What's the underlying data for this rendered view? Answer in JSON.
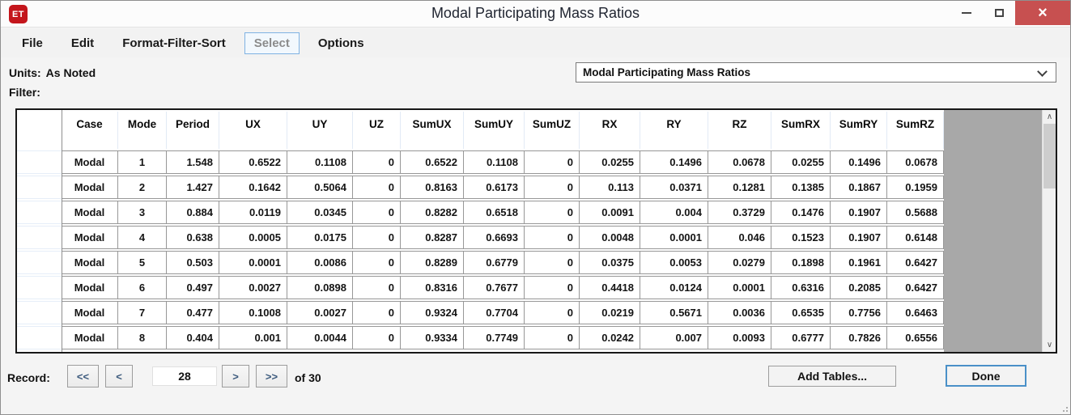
{
  "window": {
    "title": "Modal Participating Mass Ratios",
    "icon_text": "ET"
  },
  "icons": {
    "close": "×",
    "scroll_up": "∧",
    "scroll_down": "∨"
  },
  "menu": {
    "items": [
      {
        "label": "File",
        "disabled": false
      },
      {
        "label": "Edit",
        "disabled": false
      },
      {
        "label": "Format-Filter-Sort",
        "disabled": false
      },
      {
        "label": "Select",
        "disabled": true
      },
      {
        "label": "Options",
        "disabled": false
      }
    ]
  },
  "info": {
    "units_label": "Units:",
    "units_value": "As Noted",
    "filter_label": "Filter:"
  },
  "table_selector": {
    "value": "Modal Participating Mass Ratios"
  },
  "table": {
    "columns": [
      "Case",
      "Mode",
      "Period",
      "UX",
      "UY",
      "UZ",
      "SumUX",
      "SumUY",
      "SumUZ",
      "RX",
      "RY",
      "RZ",
      "SumRX",
      "SumRY",
      "SumRZ"
    ],
    "rows": [
      [
        "Modal",
        "1",
        "1.548",
        "0.6522",
        "0.1108",
        "0",
        "0.6522",
        "0.1108",
        "0",
        "0.0255",
        "0.1496",
        "0.0678",
        "0.0255",
        "0.1496",
        "0.0678"
      ],
      [
        "Modal",
        "2",
        "1.427",
        "0.1642",
        "0.5064",
        "0",
        "0.8163",
        "0.6173",
        "0",
        "0.113",
        "0.0371",
        "0.1281",
        "0.1385",
        "0.1867",
        "0.1959"
      ],
      [
        "Modal",
        "3",
        "0.884",
        "0.0119",
        "0.0345",
        "0",
        "0.8282",
        "0.6518",
        "0",
        "0.0091",
        "0.004",
        "0.3729",
        "0.1476",
        "0.1907",
        "0.5688"
      ],
      [
        "Modal",
        "4",
        "0.638",
        "0.0005",
        "0.0175",
        "0",
        "0.8287",
        "0.6693",
        "0",
        "0.0048",
        "0.0001",
        "0.046",
        "0.1523",
        "0.1907",
        "0.6148"
      ],
      [
        "Modal",
        "5",
        "0.503",
        "0.0001",
        "0.0086",
        "0",
        "0.8289",
        "0.6779",
        "0",
        "0.0375",
        "0.0053",
        "0.0279",
        "0.1898",
        "0.1961",
        "0.6427"
      ],
      [
        "Modal",
        "6",
        "0.497",
        "0.0027",
        "0.0898",
        "0",
        "0.8316",
        "0.7677",
        "0",
        "0.4418",
        "0.0124",
        "0.0001",
        "0.6316",
        "0.2085",
        "0.6427"
      ],
      [
        "Modal",
        "7",
        "0.477",
        "0.1008",
        "0.0027",
        "0",
        "0.9324",
        "0.7704",
        "0",
        "0.0219",
        "0.5671",
        "0.0036",
        "0.6535",
        "0.7756",
        "0.6463"
      ],
      [
        "Modal",
        "8",
        "0.404",
        "0.001",
        "0.0044",
        "0",
        "0.9334",
        "0.7749",
        "0",
        "0.0242",
        "0.007",
        "0.0093",
        "0.6777",
        "0.7826",
        "0.6556"
      ]
    ]
  },
  "record_nav": {
    "label": "Record:",
    "first": "<<",
    "prev": "<",
    "value": "28",
    "next": ">",
    "last": ">>",
    "total": "of 30"
  },
  "footer_buttons": {
    "add_tables": "Add Tables...",
    "done": "Done"
  },
  "colors": {
    "close_button": "#c75050",
    "app_icon_red": "#c4161c",
    "accent_blue": "#4a90c8",
    "table_filler_gray": "#a8a8a8",
    "nav_arrow_blue": "#3c5a7d"
  }
}
